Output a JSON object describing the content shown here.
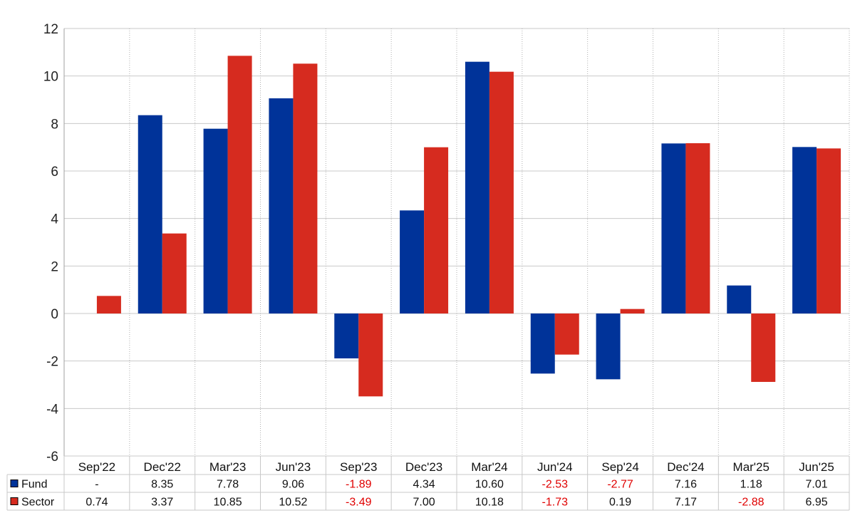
{
  "chart_data": {
    "type": "bar",
    "categories": [
      "Sep'22",
      "Dec'22",
      "Mar'23",
      "Jun'23",
      "Sep'23",
      "Dec'23",
      "Mar'24",
      "Jun'24",
      "Sep'24",
      "Dec'24",
      "Mar'25",
      "Jun'25"
    ],
    "series": [
      {
        "name": "Fund",
        "color": "#003399",
        "values": [
          null,
          8.35,
          7.78,
          9.06,
          -1.89,
          4.34,
          10.6,
          -2.53,
          -2.77,
          7.16,
          1.18,
          7.01
        ],
        "labels": [
          "-",
          "8.35",
          "7.78",
          "9.06",
          "-1.89",
          "4.34",
          "10.60",
          "-2.53",
          "-2.77",
          "7.16",
          "1.18",
          "7.01"
        ]
      },
      {
        "name": "Sector",
        "color": "#d62b1f",
        "values": [
          0.74,
          3.37,
          10.85,
          10.52,
          -3.49,
          7.0,
          10.18,
          -1.73,
          0.19,
          7.17,
          -2.88,
          6.95
        ],
        "labels": [
          "0.74",
          "3.37",
          "10.85",
          "10.52",
          "-3.49",
          "7.00",
          "10.18",
          "-1.73",
          "0.19",
          "7.17",
          "-2.88",
          "6.95"
        ]
      }
    ],
    "ylim": [
      -6,
      12
    ],
    "yticks": [
      -6,
      -4,
      -2,
      0,
      2,
      4,
      6,
      8,
      10,
      12
    ],
    "negative_value_color": "#e00000",
    "grid": true,
    "legend": "data-table-bottom"
  }
}
